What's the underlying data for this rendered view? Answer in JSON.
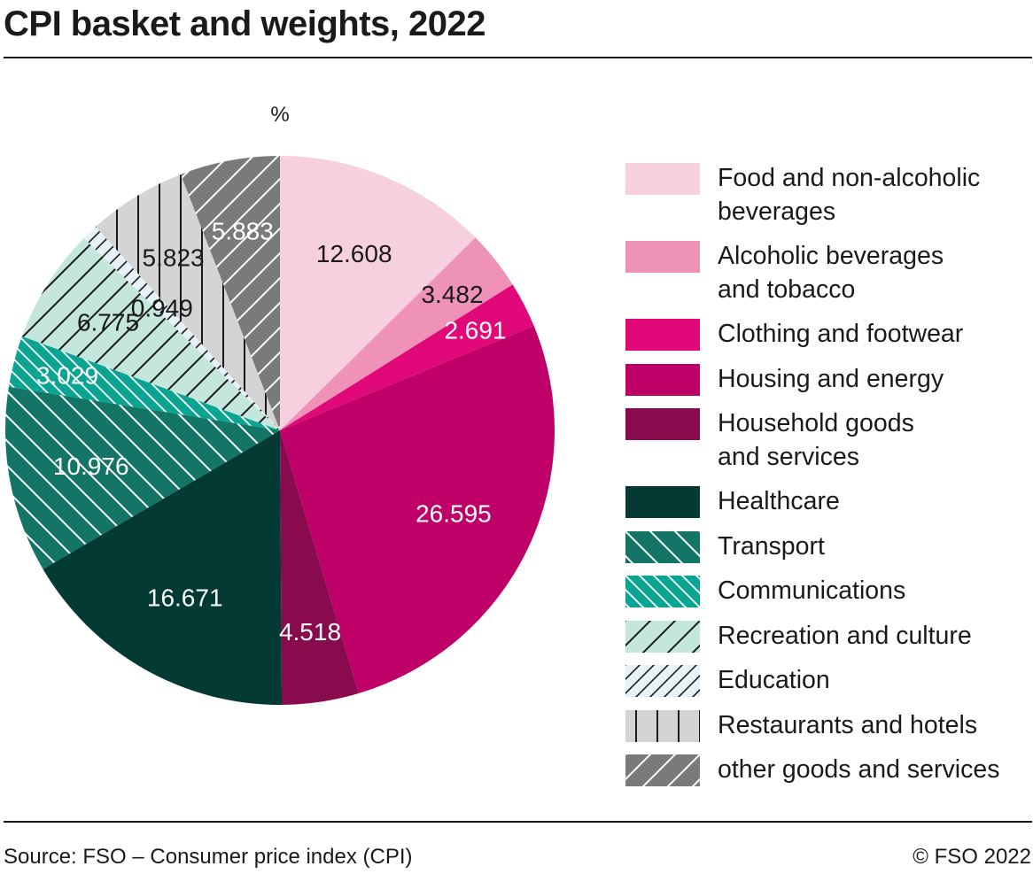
{
  "title": "CPI basket and weights, 2022",
  "source": "Source: FSO – Consumer price index (CPI)",
  "copyright": "© FSO 2022",
  "chart_data": {
    "type": "pie",
    "unit_label": "%",
    "start": "12 o'clock, clockwise",
    "slices": [
      {
        "name": "Food and non-alcoholic beverages",
        "value": 12.608,
        "fill": "#f7d0df",
        "pattern": "none",
        "label": "12.608",
        "label_color": "#1a1a1a"
      },
      {
        "name": "Alcoholic beverages and tobacco",
        "value": 3.482,
        "fill": "#ee93b7",
        "pattern": "none",
        "label": "3.482",
        "label_color": "#1a1a1a"
      },
      {
        "name": "Clothing and footwear",
        "value": 2.691,
        "fill": "#e1087a",
        "pattern": "none",
        "label": "2.691",
        "label_color": "#ffffff"
      },
      {
        "name": "Housing and energy",
        "value": 26.595,
        "fill": "#bf0068",
        "pattern": "none",
        "label": "26.595",
        "label_color": "#ffffff"
      },
      {
        "name": "Household goods and services",
        "value": 4.518,
        "fill": "#8a0a4e",
        "pattern": "none",
        "label": "4.518",
        "label_color": "#ffffff"
      },
      {
        "name": "Healthcare",
        "value": 16.671,
        "fill": "#033a34",
        "pattern": "none",
        "label": "16.671",
        "label_color": "#ffffff"
      },
      {
        "name": "Transport",
        "value": 10.976,
        "fill": "#137566",
        "pattern": "backslash",
        "label": "10.976",
        "label_color": "#ffffff"
      },
      {
        "name": "Communications",
        "value": 3.029,
        "fill": "#0aa493",
        "pattern": "backslash-dense",
        "label": "3.029",
        "label_color": "#ffffff"
      },
      {
        "name": "Recreation and culture",
        "value": 6.775,
        "fill": "#c4e6dc",
        "pattern": "slash",
        "label": "6.775",
        "label_color": "#1a1a1a"
      },
      {
        "name": "Education",
        "value": 0.949,
        "fill": "#e6f2f8",
        "pattern": "slash-dense",
        "label": "0.949",
        "label_color": "#1a1a1a"
      },
      {
        "name": "Restaurants and hotels",
        "value": 5.823,
        "fill": "#d4d4d4",
        "pattern": "vertical",
        "label": "5.823",
        "label_color": "#1a1a1a"
      },
      {
        "name": "other goods and services",
        "value": 5.883,
        "fill": "#7a7a7a",
        "pattern": "slash",
        "label": "5.883",
        "label_color": "#ffffff"
      }
    ],
    "legend": {
      "placement": "right",
      "items": [
        {
          "line1": "Food and non-alcoholic",
          "line2": "beverages"
        },
        {
          "line1": "Alcoholic beverages",
          "line2": "and tobacco"
        },
        {
          "line1": "Clothing and footwear",
          "line2": ""
        },
        {
          "line1": "Housing and energy",
          "line2": ""
        },
        {
          "line1": "Household goods",
          "line2": "and services"
        },
        {
          "line1": "Healthcare",
          "line2": ""
        },
        {
          "line1": "Transport",
          "line2": ""
        },
        {
          "line1": "Communications",
          "line2": ""
        },
        {
          "line1": "Recreation and culture",
          "line2": ""
        },
        {
          "line1": "Education",
          "line2": ""
        },
        {
          "line1": "Restaurants and hotels",
          "line2": ""
        },
        {
          "line1": "other goods and services",
          "line2": ""
        }
      ]
    }
  }
}
